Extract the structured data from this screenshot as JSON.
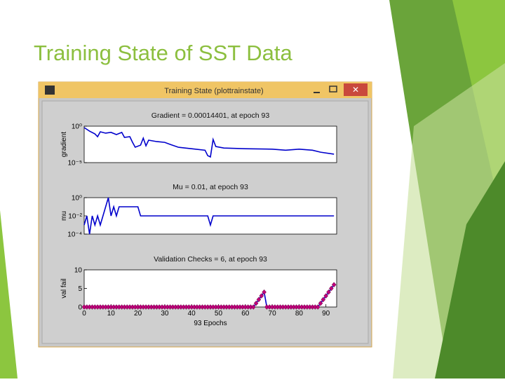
{
  "slide": {
    "title": "Training State of SST Data"
  },
  "window": {
    "title": "Training State (plottrainstate)"
  },
  "chart_data": [
    {
      "type": "line",
      "title": "Gradient = 0.00014401, at epoch 93",
      "ylabel": "gradient",
      "color": "#0000cc",
      "log_scale": true,
      "xlim": [
        0,
        94
      ],
      "ylim": [
        1e-05,
        1
      ],
      "yticks": [
        {
          "value": 1,
          "label": "10⁰"
        },
        {
          "value": 1e-05,
          "label": "10⁻⁵"
        }
      ],
      "x": [
        0,
        2,
        4,
        5,
        6,
        8,
        10,
        12,
        14,
        15,
        17,
        18,
        19,
        21,
        22,
        23,
        24,
        27,
        30,
        32,
        35,
        40,
        45,
        46,
        47,
        48,
        49,
        52,
        60,
        70,
        75,
        80,
        85,
        88,
        93
      ],
      "values": [
        0.64,
        0.21,
        0.087,
        0.036,
        0.17,
        0.11,
        0.14,
        0.07,
        0.14,
        0.029,
        0.036,
        0.0062,
        0.0013,
        0.0025,
        0.023,
        0.002,
        0.012,
        0.0077,
        0.006,
        0.0032,
        0.0013,
        0.0008,
        0.0005,
        9e-05,
        6e-05,
        0.015,
        0.0016,
        0.001,
        0.0008,
        0.0007,
        0.0005,
        0.0007,
        0.0005,
        0.00027,
        0.00014401
      ]
    },
    {
      "type": "line",
      "title": "Mu = 0.01, at epoch 93",
      "ylabel": "mu",
      "color": "#0000cc",
      "log_scale": true,
      "xlim": [
        0,
        94
      ],
      "ylim": [
        0.0001,
        1
      ],
      "yticks": [
        {
          "value": 1,
          "label": "10⁰"
        },
        {
          "value": 0.01,
          "label": "10⁻²"
        },
        {
          "value": 0.0001,
          "label": "10⁻⁴"
        }
      ],
      "x": [
        0,
        1,
        2,
        3,
        4,
        5,
        6,
        7,
        8,
        9,
        10,
        11,
        12,
        13,
        20,
        21,
        46,
        47,
        48,
        93
      ],
      "values": [
        0.001,
        0.01,
        0.0001,
        0.01,
        0.001,
        0.01,
        0.001,
        0.01,
        0.1,
        1,
        0.01,
        0.1,
        0.01,
        0.1,
        0.1,
        0.01,
        0.01,
        0.001,
        0.01,
        0.01
      ]
    },
    {
      "type": "line",
      "title": "Validation Checks = 6, at epoch 93",
      "ylabel": "val fail",
      "xlabel": "93 Epochs",
      "color": "#0000cc",
      "marker": "diamond",
      "marker_color": "#c0007a",
      "log_scale": false,
      "xlim": [
        0,
        94
      ],
      "ylim": [
        0,
        10
      ],
      "yticks": [
        0,
        5,
        10
      ],
      "xticks": [
        0,
        10,
        20,
        30,
        40,
        50,
        60,
        70,
        80,
        90
      ],
      "x": [
        0,
        1,
        2,
        3,
        4,
        5,
        6,
        7,
        8,
        9,
        10,
        11,
        12,
        13,
        14,
        15,
        16,
        17,
        18,
        19,
        20,
        21,
        22,
        23,
        24,
        25,
        26,
        27,
        28,
        29,
        30,
        31,
        32,
        33,
        34,
        35,
        36,
        37,
        38,
        39,
        40,
        41,
        42,
        43,
        44,
        45,
        46,
        47,
        48,
        49,
        50,
        51,
        52,
        53,
        54,
        55,
        56,
        57,
        58,
        59,
        60,
        61,
        62,
        63,
        64,
        65,
        66,
        67,
        68,
        69,
        70,
        71,
        72,
        73,
        74,
        75,
        76,
        77,
        78,
        79,
        80,
        81,
        82,
        83,
        84,
        85,
        86,
        87,
        88,
        89,
        90,
        91,
        92,
        93
      ],
      "values": [
        0,
        0,
        0,
        0,
        0,
        0,
        0,
        0,
        0,
        0,
        0,
        0,
        0,
        0,
        0,
        0,
        0,
        0,
        0,
        0,
        0,
        0,
        0,
        0,
        0,
        0,
        0,
        0,
        0,
        0,
        0,
        0,
        0,
        0,
        0,
        0,
        0,
        0,
        0,
        0,
        0,
        0,
        0,
        0,
        0,
        0,
        0,
        0,
        0,
        0,
        0,
        0,
        0,
        0,
        0,
        0,
        0,
        0,
        0,
        0,
        0,
        0,
        0,
        0,
        1,
        2,
        3,
        4,
        0,
        0,
        0,
        0,
        0,
        0,
        0,
        0,
        0,
        0,
        0,
        0,
        0,
        0,
        0,
        0,
        0,
        0,
        0,
        0,
        1,
        2,
        3,
        4,
        5,
        6
      ]
    }
  ]
}
